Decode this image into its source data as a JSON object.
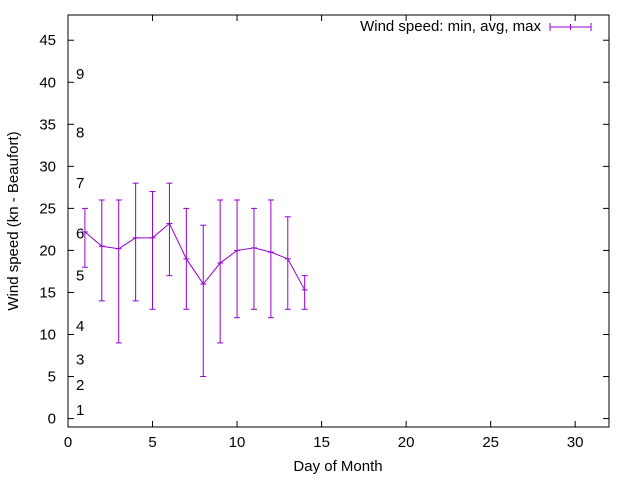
{
  "chart_data": {
    "type": "line",
    "title": "",
    "xlabel": "Day of Month",
    "ylabel": "Wind speed (kn - Beaufort)",
    "xlim": [
      0,
      32
    ],
    "ylim": [
      -1,
      48
    ],
    "x_ticks": [
      0,
      5,
      10,
      15,
      20,
      25,
      30
    ],
    "y_ticks": [
      0,
      5,
      10,
      15,
      20,
      25,
      30,
      35,
      40,
      45
    ],
    "beaufort_labels": [
      {
        "label": "1",
        "y": 1
      },
      {
        "label": "2",
        "y": 4
      },
      {
        "label": "3",
        "y": 7
      },
      {
        "label": "4",
        "y": 11
      },
      {
        "label": "5",
        "y": 17
      },
      {
        "label": "6",
        "y": 22
      },
      {
        "label": "7",
        "y": 28
      },
      {
        "label": "8",
        "y": 34
      },
      {
        "label": "9",
        "y": 41
      }
    ],
    "legend": {
      "label": "Wind speed: min, avg, max",
      "position": "top-right"
    },
    "series": [
      {
        "name": "Wind speed: min, avg, max",
        "color": "#9400d3",
        "x": [
          1,
          2,
          3,
          4,
          5,
          6,
          7,
          8,
          9,
          10,
          11,
          12,
          13,
          14
        ],
        "min": [
          18,
          14,
          9,
          14,
          13,
          17,
          13,
          5,
          9,
          12,
          13,
          12,
          13,
          13
        ],
        "avg": [
          22.2,
          20.5,
          20.2,
          21.5,
          21.5,
          23.2,
          19,
          16,
          18.5,
          20,
          20.3,
          19.8,
          19,
          15.3
        ],
        "max": [
          25,
          26,
          26,
          28,
          27,
          28,
          25,
          23,
          26,
          26,
          25,
          26,
          24,
          17
        ]
      }
    ],
    "grid": false
  }
}
